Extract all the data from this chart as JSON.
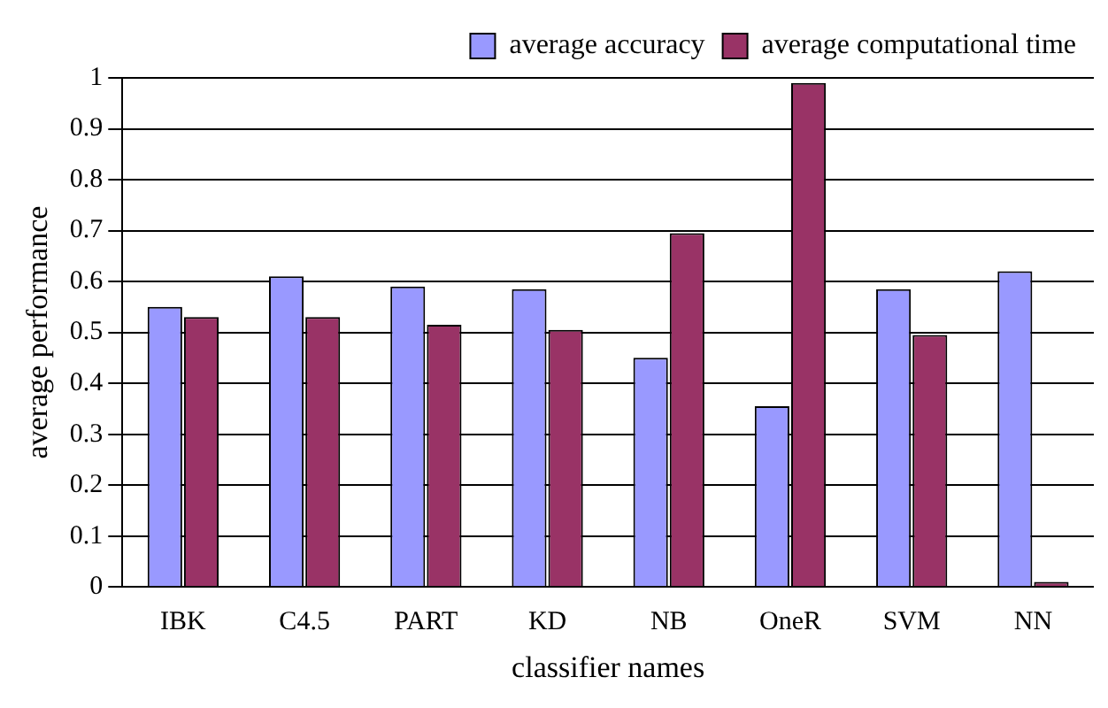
{
  "chart_data": {
    "type": "bar",
    "xlabel": "classifier names",
    "ylabel": "average performance",
    "categories": [
      "IBK",
      "C4.5",
      "PART",
      "KD",
      "NB",
      "OneR",
      "SVM",
      "NN"
    ],
    "series": [
      {
        "name": "average accuracy",
        "color": "#9999ff",
        "values": [
          0.55,
          0.61,
          0.59,
          0.585,
          0.45,
          0.355,
          0.585,
          0.62
        ]
      },
      {
        "name": "average computational time",
        "color": "#993366",
        "values": [
          0.53,
          0.53,
          0.515,
          0.505,
          0.695,
          0.99,
          0.495,
          0.01
        ]
      }
    ],
    "ylim": [
      0,
      1
    ],
    "yticks": [
      0,
      0.1,
      0.2,
      0.3,
      0.4,
      0.5,
      0.6,
      0.7,
      0.8,
      0.9,
      1
    ],
    "grid": "y",
    "legend": "top"
  }
}
